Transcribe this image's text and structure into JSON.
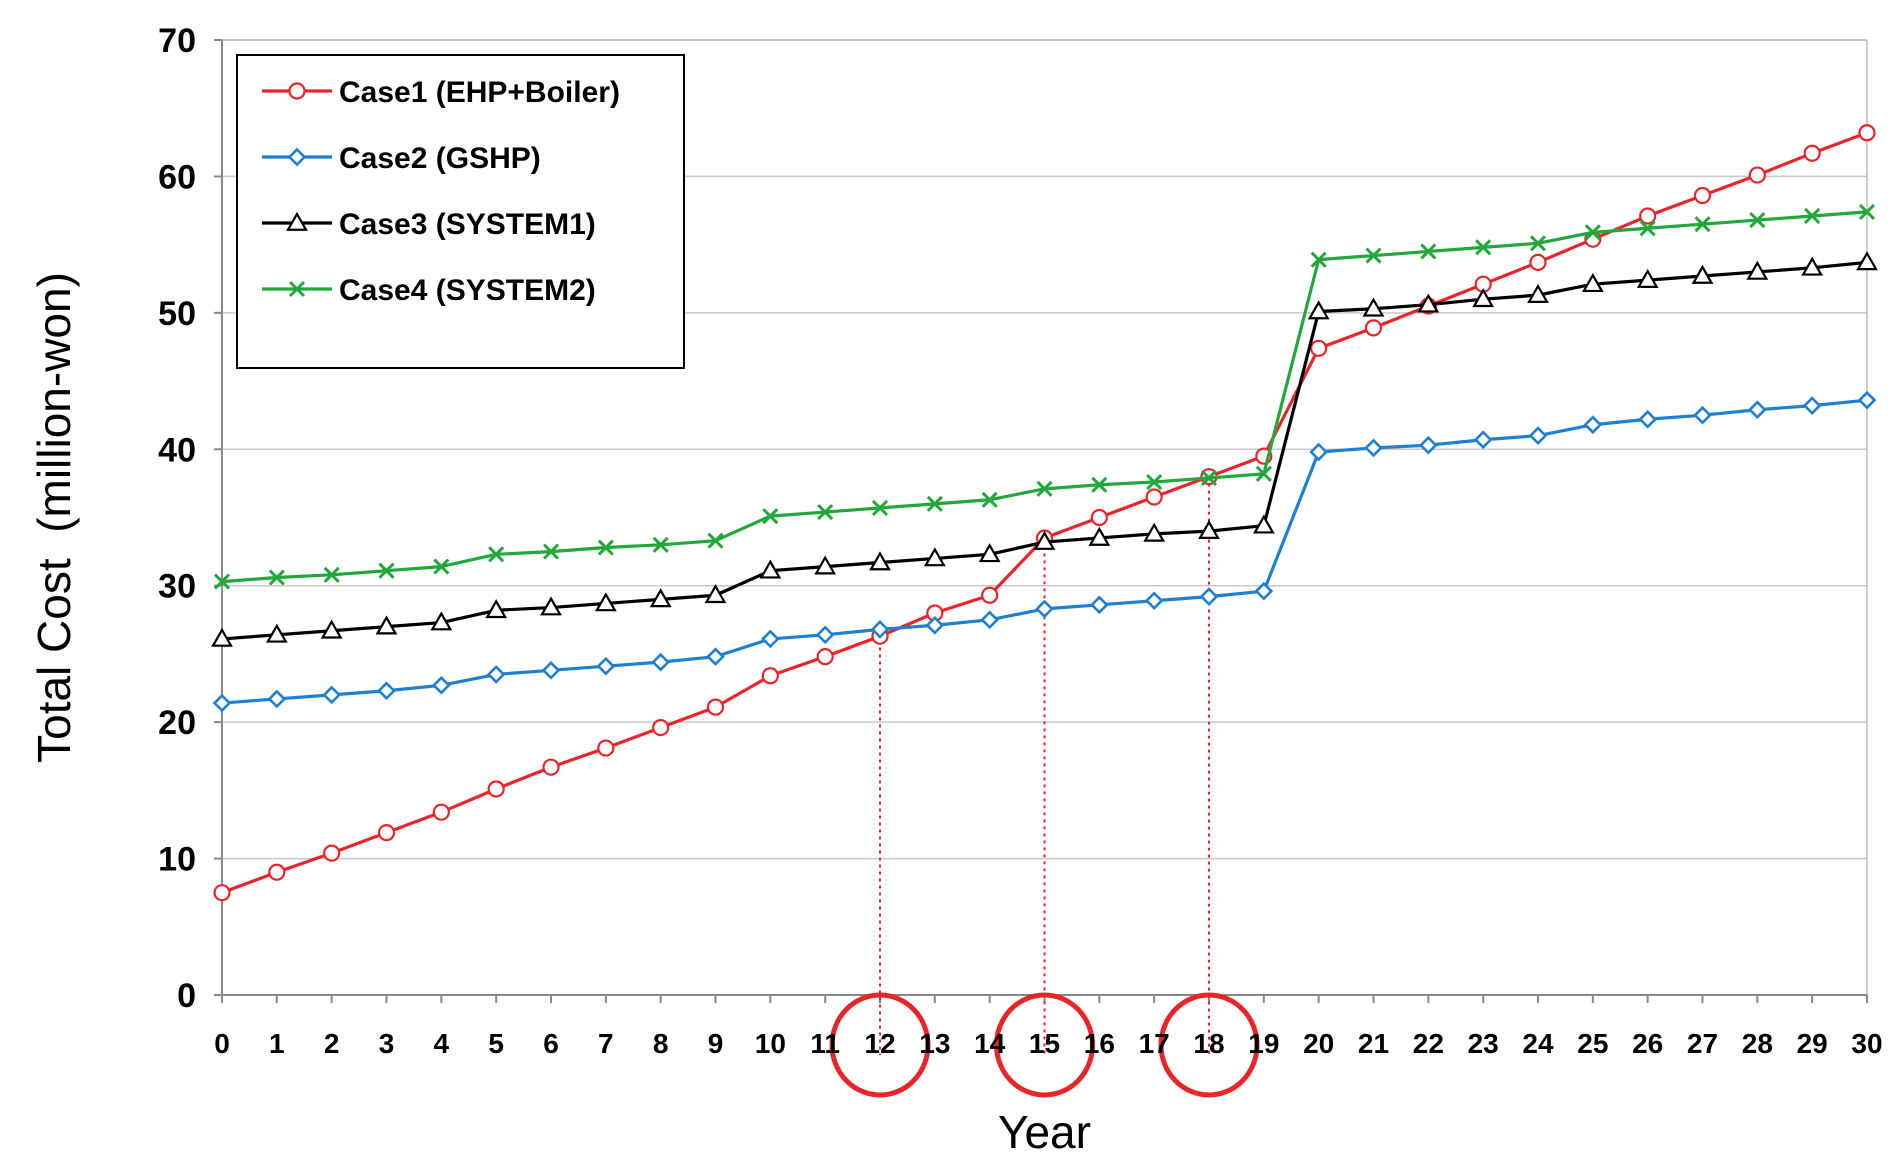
{
  "chart_data": {
    "type": "line",
    "title": "",
    "xlabel": "Year",
    "ylabel": "Total Cost  (million-won)",
    "xlim": [
      0,
      30
    ],
    "ylim": [
      0,
      70
    ],
    "yticks": [
      0,
      10,
      20,
      30,
      40,
      50,
      60,
      70
    ],
    "x": [
      0,
      1,
      2,
      3,
      4,
      5,
      6,
      7,
      8,
      9,
      10,
      11,
      12,
      13,
      14,
      15,
      16,
      17,
      18,
      19,
      20,
      21,
      22,
      23,
      24,
      25,
      26,
      27,
      28,
      29,
      30
    ],
    "grid": "horizontal",
    "legend_position": "top-left",
    "series": [
      {
        "name": "Case1 (EHP+Boiler)",
        "color": "#e8262a",
        "marker": "circle",
        "values": [
          7.5,
          9.0,
          10.4,
          11.9,
          13.4,
          15.1,
          16.7,
          18.1,
          19.6,
          21.1,
          23.4,
          24.8,
          26.3,
          28.0,
          29.3,
          33.5,
          35.0,
          36.5,
          38.0,
          39.5,
          47.4,
          48.9,
          50.5,
          52.1,
          53.7,
          55.4,
          57.1,
          58.6,
          60.1,
          61.7,
          63.2
        ]
      },
      {
        "name": "Case2 (GSHP)",
        "color": "#1f7fd1",
        "marker": "diamond",
        "values": [
          21.4,
          21.7,
          22.0,
          22.3,
          22.7,
          23.5,
          23.8,
          24.1,
          24.4,
          24.8,
          26.1,
          26.4,
          26.8,
          27.1,
          27.5,
          28.3,
          28.6,
          28.9,
          29.2,
          29.6,
          39.8,
          40.1,
          40.3,
          40.7,
          41.0,
          41.8,
          42.2,
          42.5,
          42.9,
          43.2,
          43.6
        ]
      },
      {
        "name": "Case3 (SYSTEM1)",
        "color": "#000000",
        "marker": "triangle",
        "values": [
          26.1,
          26.4,
          26.7,
          27.0,
          27.3,
          28.2,
          28.4,
          28.7,
          29.0,
          29.3,
          31.1,
          31.4,
          31.7,
          32.0,
          32.3,
          33.2,
          33.5,
          33.8,
          34.0,
          34.4,
          50.1,
          50.3,
          50.6,
          51.0,
          51.3,
          52.1,
          52.4,
          52.7,
          53.0,
          53.3,
          53.7
        ]
      },
      {
        "name": "Case4 (SYSTEM2)",
        "color": "#22a83a",
        "marker": "x",
        "values": [
          30.3,
          30.6,
          30.8,
          31.1,
          31.4,
          32.3,
          32.5,
          32.8,
          33.0,
          33.3,
          35.1,
          35.4,
          35.7,
          36.0,
          36.3,
          37.1,
          37.4,
          37.6,
          37.9,
          38.2,
          53.9,
          54.2,
          54.5,
          54.8,
          55.1,
          55.9,
          56.2,
          56.5,
          56.8,
          57.1,
          57.4
        ]
      }
    ],
    "annotations": [
      {
        "type": "crossover-marker",
        "x": 12,
        "y": 26.5,
        "color": "#e8262a"
      },
      {
        "type": "crossover-marker",
        "x": 15,
        "y": 33.4,
        "color": "#e8262a"
      },
      {
        "type": "crossover-marker",
        "x": 18,
        "y": 38.0,
        "color": "#e8262a"
      }
    ]
  }
}
